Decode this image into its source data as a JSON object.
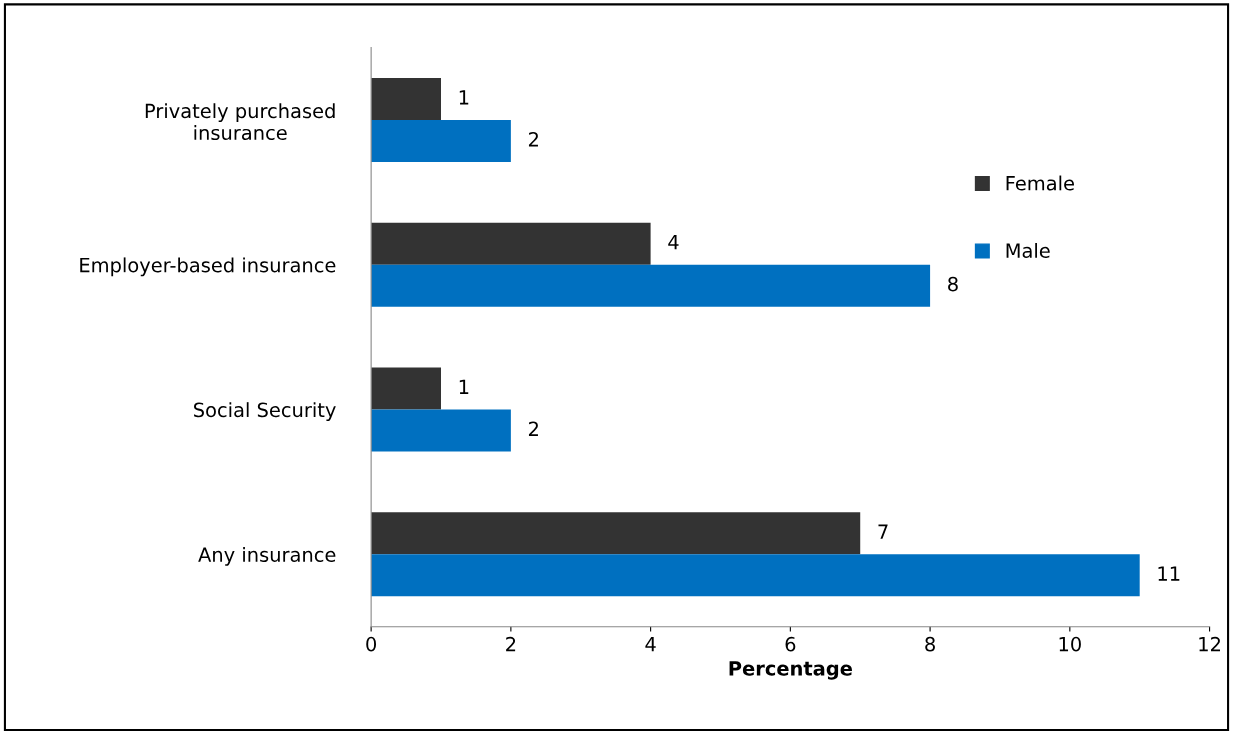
{
  "chart_data": {
    "type": "bar",
    "orientation": "horizontal",
    "categories": [
      "Privately purchased\ninsurance",
      "Employer-based insurance",
      "Social Security",
      "Any insurance"
    ],
    "series": [
      {
        "name": "Female",
        "color": "#333333",
        "values": [
          1,
          4,
          1,
          7
        ]
      },
      {
        "name": "Male",
        "color": "#0070c0",
        "values": [
          2,
          8,
          2,
          11
        ]
      }
    ],
    "xlabel": "Percentage",
    "xlim": [
      0,
      12
    ],
    "xticks": [
      0,
      2,
      4,
      6,
      8,
      10,
      12
    ],
    "data_labels": true,
    "grid": false,
    "legend": "top right"
  }
}
